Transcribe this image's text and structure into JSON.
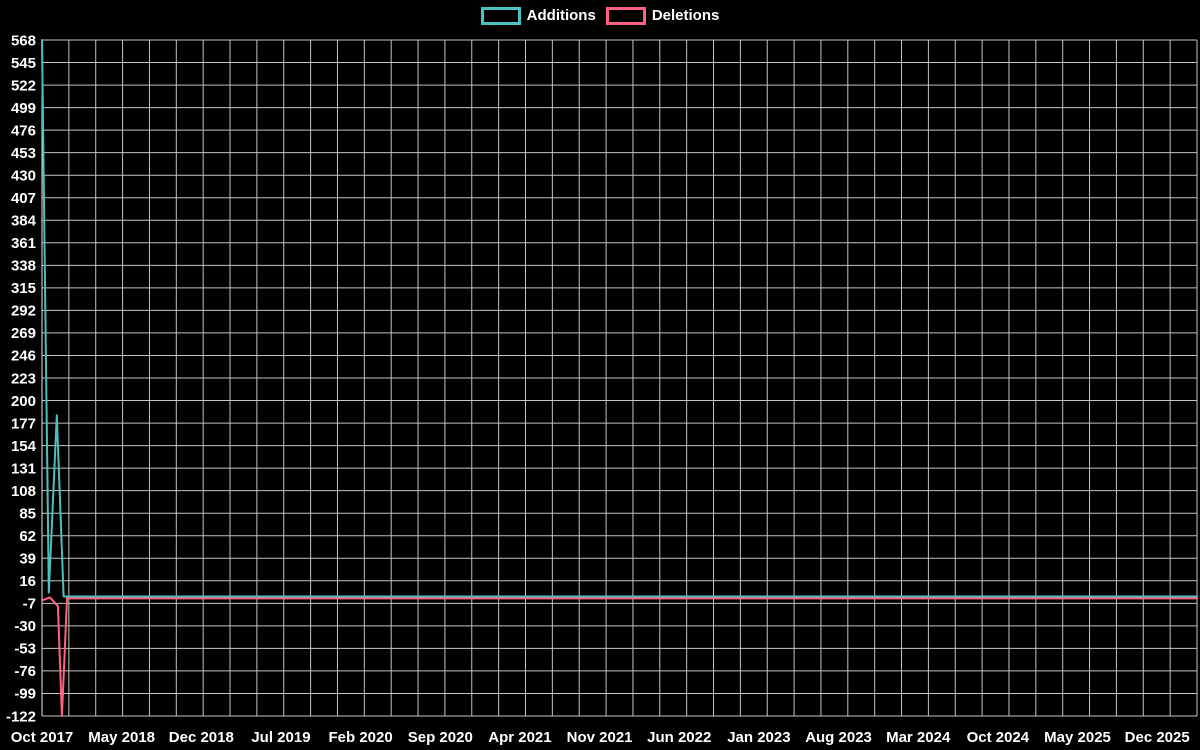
{
  "chart_data": {
    "type": "line",
    "title": "",
    "legend_position": "top",
    "background": "#000000",
    "grid": true,
    "grid_color": "#c4c4c4",
    "axis_color": "#e8e8e8",
    "text_color": "#ffffff",
    "x_axis": {
      "tick_labels": [
        "Oct 2017",
        "May 2018",
        "Dec 2018",
        "Jul 2019",
        "Feb 2020",
        "Sep 2020",
        "Apr 2021",
        "Nov 2021",
        "Jun 2022",
        "Jan 2023",
        "Aug 2023",
        "Mar 2024",
        "Oct 2024",
        "May 2025",
        "Dec 2025"
      ],
      "tick_positions_months": [
        0,
        7,
        14,
        21,
        28,
        35,
        42,
        49,
        56,
        63,
        70,
        77,
        84,
        91,
        98
      ],
      "range_months": [
        0,
        101.5
      ]
    },
    "y_axis": {
      "ticks": [
        568,
        545,
        522,
        499,
        476,
        453,
        430,
        407,
        384,
        361,
        338,
        315,
        292,
        269,
        246,
        223,
        200,
        177,
        154,
        131,
        108,
        85,
        62,
        39,
        16,
        -7,
        -30,
        -53,
        -76,
        -99,
        -122
      ],
      "range": [
        -122,
        568
      ]
    },
    "series": [
      {
        "name": "Additions",
        "color": "#4bc0c0",
        "points": [
          [
            0,
            568
          ],
          [
            0.6,
            4
          ],
          [
            1.3,
            185
          ],
          [
            1.9,
            0
          ],
          [
            101.5,
            0
          ]
        ]
      },
      {
        "name": "Deletions",
        "color": "#ff6384",
        "points": [
          [
            0,
            -4
          ],
          [
            0.7,
            -1
          ],
          [
            1.4,
            -10
          ],
          [
            1.75,
            -122
          ],
          [
            2.2,
            -2
          ],
          [
            101.5,
            -2
          ]
        ]
      }
    ]
  }
}
